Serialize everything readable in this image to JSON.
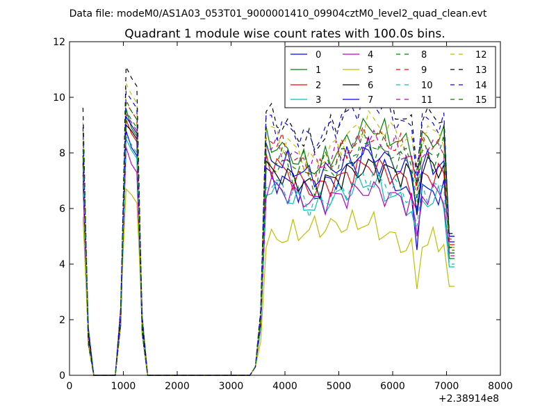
{
  "suptitle": "Data file: modeM0/AS1A03_053T01_9000001410_09904cztM0_level2_quad_clean.evt",
  "chart_data": {
    "type": "line",
    "title": "Quadrant 1 module wise count rates with 100.0s bins.",
    "xlabel": "",
    "ylabel": "",
    "x_offset_label": "+2.38914e8",
    "xlim": [
      0,
      8000
    ],
    "ylim": [
      0,
      12
    ],
    "xticks": [
      "0",
      "1000",
      "2000",
      "3000",
      "4000",
      "5000",
      "6000",
      "7000",
      "8000"
    ],
    "yticks": [
      "0",
      "2",
      "4",
      "6",
      "8",
      "10",
      "12"
    ],
    "grid": false,
    "legend_position": "top-right",
    "x": [
      250,
      350,
      450,
      550,
      650,
      750,
      850,
      950,
      1050,
      1150,
      1250,
      1350,
      1450,
      1550,
      1650,
      1750,
      1850,
      1950,
      2050,
      2150,
      2250,
      2350,
      2450,
      2550,
      2650,
      2750,
      2850,
      2950,
      3050,
      3150,
      3250,
      3350,
      3450,
      3550,
      3650,
      3750,
      3850,
      3950,
      4050,
      4150,
      4250,
      4350,
      4450,
      4550,
      4650,
      4750,
      4850,
      4950,
      5050,
      5150,
      5250,
      5350,
      5450,
      5550,
      5650,
      5750,
      5850,
      5950,
      6050,
      6150,
      6250,
      6350,
      6450,
      6550,
      6650,
      6750,
      6850,
      6950,
      7050,
      7150
    ],
    "series": [
      {
        "name": "0",
        "color": "#0000ff",
        "dash": "solid",
        "levels": [
          7.2,
          6.5,
          8.0,
          6.3,
          4.8
        ],
        "peak1": 8.8,
        "peak2": 7.9
      },
      {
        "name": "1",
        "color": "#008000",
        "dash": "solid",
        "levels": [
          8.5,
          7.4,
          9.0,
          8.2,
          4.2
        ],
        "peak1": 9.6,
        "peak2": 8.6
      },
      {
        "name": "2",
        "color": "#ff0000",
        "dash": "solid",
        "levels": [
          7.8,
          6.6,
          7.6,
          6.9,
          4.7
        ],
        "peak1": 9.2,
        "peak2": 8.4
      },
      {
        "name": "3",
        "color": "#00bfbf",
        "dash": "solid",
        "levels": [
          6.8,
          6.0,
          7.0,
          6.0,
          3.9
        ],
        "peak1": 8.5,
        "peak2": 7.8
      },
      {
        "name": "4",
        "color": "#bf00bf",
        "dash": "solid",
        "levels": [
          6.9,
          6.2,
          6.7,
          6.2,
          4.4
        ],
        "peak1": 8.2,
        "peak2": 7.3
      },
      {
        "name": "5",
        "color": "#bfbf00",
        "dash": "solid",
        "levels": [
          4.8,
          5.3,
          5.5,
          4.5,
          3.2
        ],
        "peak1": 6.7,
        "peak2": 6.2
      },
      {
        "name": "6",
        "color": "#000000",
        "dash": "solid",
        "levels": [
          7.4,
          6.8,
          7.5,
          7.2,
          4.6
        ],
        "peak1": 9.0,
        "peak2": 8.5
      },
      {
        "name": "7",
        "color": "#0000ff",
        "dash": "solid",
        "levels": [
          7.9,
          7.1,
          8.1,
          7.3,
          5.0
        ],
        "peak1": 9.3,
        "peak2": 8.7
      },
      {
        "name": "8",
        "color": "#008000",
        "dash": "dashed",
        "levels": [
          7.7,
          7.0,
          8.2,
          7.5,
          4.5
        ],
        "peak1": 9.5,
        "peak2": 8.9
      },
      {
        "name": "9",
        "color": "#ff0000",
        "dash": "dashed",
        "levels": [
          8.7,
          7.2,
          8.7,
          8.0,
          4.9
        ],
        "peak1": 9.8,
        "peak2": 9.2
      },
      {
        "name": "10",
        "color": "#00bfbf",
        "dash": "dashed",
        "levels": [
          7.0,
          6.1,
          7.2,
          6.4,
          4.0
        ],
        "peak1": 8.6,
        "peak2": 8.0
      },
      {
        "name": "11",
        "color": "#bf00bf",
        "dash": "dashed",
        "levels": [
          8.3,
          7.5,
          8.5,
          7.9,
          4.3
        ],
        "peak1": 9.4,
        "peak2": 8.8
      },
      {
        "name": "12",
        "color": "#bfbf00",
        "dash": "dashed",
        "levels": [
          8.9,
          7.6,
          9.2,
          8.4,
          4.6
        ],
        "peak1": 10.5,
        "peak2": 9.8
      },
      {
        "name": "13",
        "color": "#000000",
        "dash": "dashed",
        "levels": [
          9.5,
          8.2,
          10.4,
          9.0,
          5.1
        ],
        "peak1": 11.1,
        "peak2": 10.4
      },
      {
        "name": "14",
        "color": "#0000ff",
        "dash": "dashed",
        "levels": [
          9.2,
          8.4,
          10.0,
          8.8,
          5.0
        ],
        "peak1": 10.2,
        "peak2": 9.6
      },
      {
        "name": "15",
        "color": "#008000",
        "dash": "dashed",
        "levels": [
          8.0,
          7.4,
          8.4,
          7.8,
          4.4
        ],
        "peak1": 9.9,
        "peak2": 9.2
      }
    ]
  }
}
